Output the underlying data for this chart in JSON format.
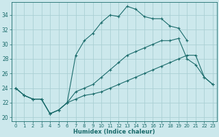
{
  "xlabel": "Humidex (Indice chaleur)",
  "background_color": "#cce8ec",
  "grid_color": "#aacfd4",
  "line_color": "#1a6b6b",
  "xlim": [
    -0.5,
    23.5
  ],
  "ylim": [
    19.5,
    35.8
  ],
  "xticks": [
    0,
    1,
    2,
    3,
    4,
    5,
    6,
    7,
    8,
    9,
    10,
    11,
    12,
    13,
    14,
    15,
    16,
    17,
    18,
    19,
    20,
    21,
    22,
    23
  ],
  "yticks": [
    20,
    22,
    24,
    26,
    28,
    30,
    32,
    34
  ],
  "line1_x": [
    0,
    1,
    2,
    3,
    4,
    5,
    6,
    7,
    8,
    9,
    10,
    11,
    12,
    13,
    14,
    15,
    16,
    17,
    18,
    19,
    20,
    21,
    22,
    23
  ],
  "line1_y": [
    24.0,
    23.0,
    22.5,
    22.5,
    20.5,
    21.0,
    22.0,
    28.5,
    30.5,
    31.5,
    33.0,
    34.0,
    33.8,
    35.2,
    34.8,
    33.8,
    33.5,
    33.5,
    32.5,
    32.2,
    30.5,
    null,
    null,
    null
  ],
  "line2_x": [
    0,
    1,
    2,
    3,
    4,
    5,
    6,
    7,
    8,
    9,
    10,
    11,
    12,
    13,
    14,
    15,
    16,
    17,
    18,
    19,
    20,
    21,
    22,
    23
  ],
  "line2_y": [
    24.0,
    23.0,
    22.5,
    22.5,
    20.5,
    21.0,
    22.0,
    23.5,
    24.0,
    24.5,
    25.5,
    26.5,
    27.5,
    28.5,
    29.0,
    29.5,
    30.0,
    30.5,
    30.5,
    30.8,
    28.0,
    27.2,
    25.5,
    24.5
  ],
  "line3_x": [
    0,
    1,
    2,
    3,
    4,
    5,
    6,
    7,
    8,
    9,
    10,
    11,
    12,
    13,
    14,
    15,
    16,
    17,
    18,
    19,
    20,
    21,
    22,
    23
  ],
  "line3_y": [
    24.0,
    23.0,
    22.5,
    22.5,
    20.5,
    21.0,
    22.0,
    22.5,
    23.0,
    23.2,
    23.5,
    24.0,
    24.5,
    25.0,
    25.5,
    26.0,
    26.5,
    27.0,
    27.5,
    28.0,
    28.5,
    28.5,
    25.5,
    24.5
  ]
}
